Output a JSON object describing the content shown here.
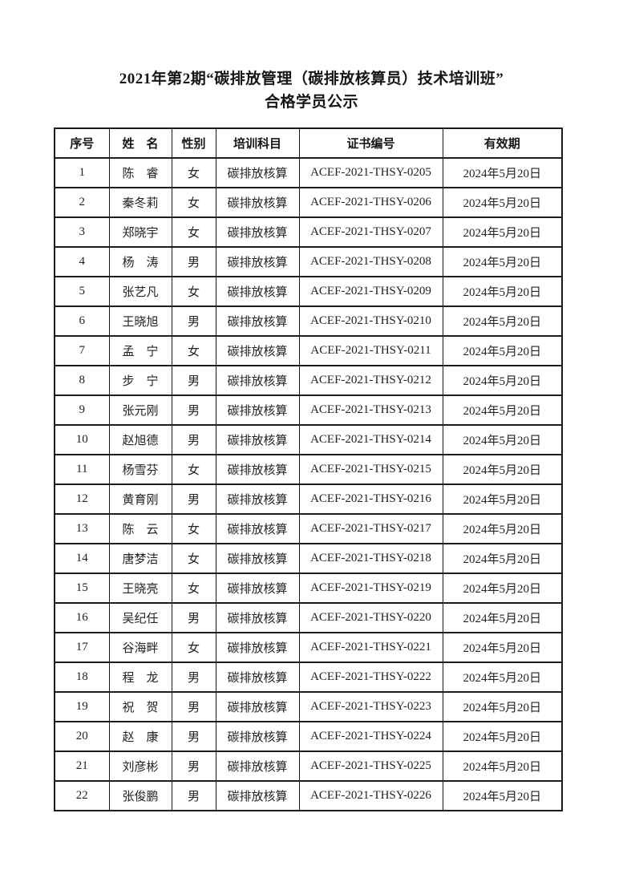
{
  "page": {
    "title_line1": "2021年第2期“碳排放管理（碳排放核算员）技术培训班”",
    "title_line2": "合格学员公示"
  },
  "table": {
    "headers": [
      "序号",
      "姓　名",
      "性别",
      "培训科目",
      "证书编号",
      "有效期"
    ],
    "rows": [
      {
        "no": "1",
        "name": "陈　睿",
        "gender": "女",
        "subject": "碳排放核算",
        "cert": "ACEF-2021-THSY-0205",
        "validity": "2024年5月20日"
      },
      {
        "no": "2",
        "name": "秦冬莉",
        "gender": "女",
        "subject": "碳排放核算",
        "cert": "ACEF-2021-THSY-0206",
        "validity": "2024年5月20日"
      },
      {
        "no": "3",
        "name": "郑晓宇",
        "gender": "女",
        "subject": "碳排放核算",
        "cert": "ACEF-2021-THSY-0207",
        "validity": "2024年5月20日"
      },
      {
        "no": "4",
        "name": "杨　涛",
        "gender": "男",
        "subject": "碳排放核算",
        "cert": "ACEF-2021-THSY-0208",
        "validity": "2024年5月20日"
      },
      {
        "no": "5",
        "name": "张艺凡",
        "gender": "女",
        "subject": "碳排放核算",
        "cert": "ACEF-2021-THSY-0209",
        "validity": "2024年5月20日"
      },
      {
        "no": "6",
        "name": "王晓旭",
        "gender": "男",
        "subject": "碳排放核算",
        "cert": "ACEF-2021-THSY-0210",
        "validity": "2024年5月20日"
      },
      {
        "no": "7",
        "name": "孟　宁",
        "gender": "女",
        "subject": "碳排放核算",
        "cert": "ACEF-2021-THSY-0211",
        "validity": "2024年5月20日"
      },
      {
        "no": "8",
        "name": "步　宁",
        "gender": "男",
        "subject": "碳排放核算",
        "cert": "ACEF-2021-THSY-0212",
        "validity": "2024年5月20日"
      },
      {
        "no": "9",
        "name": "张元刚",
        "gender": "男",
        "subject": "碳排放核算",
        "cert": "ACEF-2021-THSY-0213",
        "validity": "2024年5月20日"
      },
      {
        "no": "10",
        "name": "赵旭德",
        "gender": "男",
        "subject": "碳排放核算",
        "cert": "ACEF-2021-THSY-0214",
        "validity": "2024年5月20日"
      },
      {
        "no": "11",
        "name": "杨雪芬",
        "gender": "女",
        "subject": "碳排放核算",
        "cert": "ACEF-2021-THSY-0215",
        "validity": "2024年5月20日"
      },
      {
        "no": "12",
        "name": "黄育刚",
        "gender": "男",
        "subject": "碳排放核算",
        "cert": "ACEF-2021-THSY-0216",
        "validity": "2024年5月20日"
      },
      {
        "no": "13",
        "name": "陈　云",
        "gender": "女",
        "subject": "碳排放核算",
        "cert": "ACEF-2021-THSY-0217",
        "validity": "2024年5月20日"
      },
      {
        "no": "14",
        "name": "唐梦洁",
        "gender": "女",
        "subject": "碳排放核算",
        "cert": "ACEF-2021-THSY-0218",
        "validity": "2024年5月20日"
      },
      {
        "no": "15",
        "name": "王晓亮",
        "gender": "女",
        "subject": "碳排放核算",
        "cert": "ACEF-2021-THSY-0219",
        "validity": "2024年5月20日"
      },
      {
        "no": "16",
        "name": "吴纪任",
        "gender": "男",
        "subject": "碳排放核算",
        "cert": "ACEF-2021-THSY-0220",
        "validity": "2024年5月20日"
      },
      {
        "no": "17",
        "name": "谷海畔",
        "gender": "女",
        "subject": "碳排放核算",
        "cert": "ACEF-2021-THSY-0221",
        "validity": "2024年5月20日"
      },
      {
        "no": "18",
        "name": "程　龙",
        "gender": "男",
        "subject": "碳排放核算",
        "cert": "ACEF-2021-THSY-0222",
        "validity": "2024年5月20日"
      },
      {
        "no": "19",
        "name": "祝　贺",
        "gender": "男",
        "subject": "碳排放核算",
        "cert": "ACEF-2021-THSY-0223",
        "validity": "2024年5月20日"
      },
      {
        "no": "20",
        "name": "赵　康",
        "gender": "男",
        "subject": "碳排放核算",
        "cert": "ACEF-2021-THSY-0224",
        "validity": "2024年5月20日"
      },
      {
        "no": "21",
        "name": "刘彦彬",
        "gender": "男",
        "subject": "碳排放核算",
        "cert": "ACEF-2021-THSY-0225",
        "validity": "2024年5月20日"
      },
      {
        "no": "22",
        "name": "张俊鹏",
        "gender": "男",
        "subject": "碳排放核算",
        "cert": "ACEF-2021-THSY-0226",
        "validity": "2024年5月20日"
      }
    ]
  }
}
